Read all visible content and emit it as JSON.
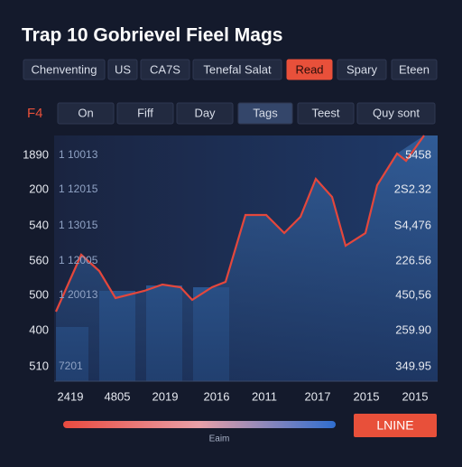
{
  "header": {
    "title": "Trap 10 Gobrievel Fieel Mags"
  },
  "tabs": [
    "Chenventing",
    "US",
    "CA7S",
    "Tenefal Salat",
    "Read",
    "Spary",
    "Eteen"
  ],
  "filter": {
    "label": "F4",
    "options": [
      "On",
      "Fiff",
      "Day",
      "Tags",
      "Teest",
      "Quy sont"
    ]
  },
  "chart": {
    "left_labels": [
      "1890",
      "200",
      "540",
      "560",
      "500",
      "400",
      "510"
    ],
    "inner_labels": [
      "1 10013",
      "1 12015",
      "1 13015",
      "1 12005",
      "1 20013",
      "7201"
    ],
    "right_labels": [
      "5458",
      "2S2.32",
      "S4,476",
      "226.56",
      "450,56",
      "259.90",
      "349.95"
    ],
    "x_labels": [
      "2419",
      "4805",
      "2019",
      "2016",
      "2011",
      "2017",
      "2015",
      "2015"
    ],
    "legend": "Eaim"
  },
  "button": "LNINE"
}
